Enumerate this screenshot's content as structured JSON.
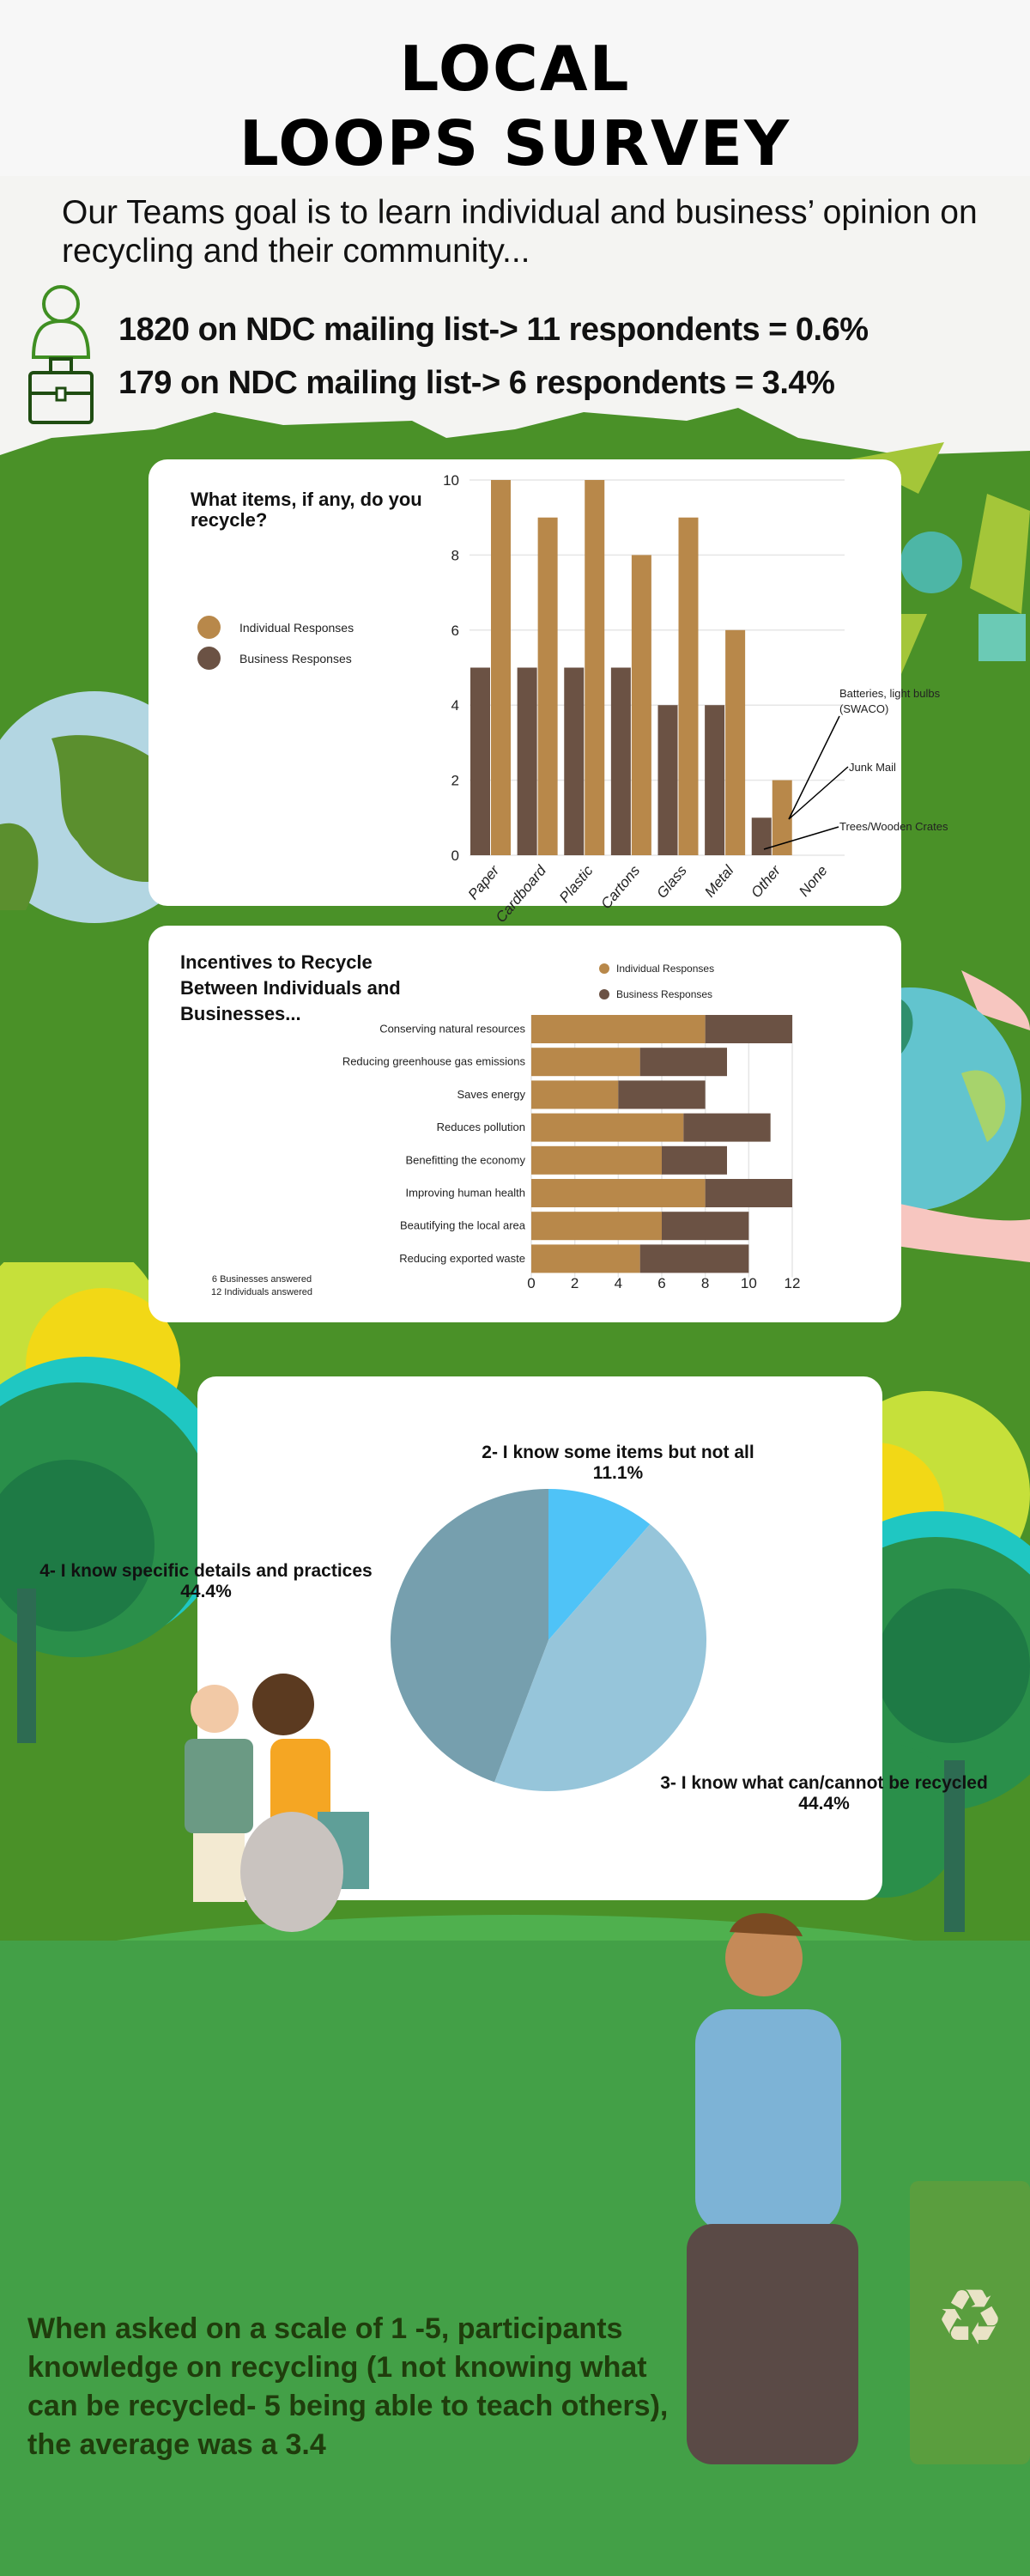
{
  "header": {
    "title_line1": "LOCAL",
    "title_line2": "LOOPS SURVEY"
  },
  "intro": {
    "goal": "Our Teams goal is to learn individual and business’ opinion on recycling and their community..."
  },
  "stats": [
    {
      "icon": "person-icon",
      "text": "1820 on NDC mailing list-> 11 respondents = 0.6%"
    },
    {
      "icon": "briefcase-icon",
      "text": "179 on NDC mailing list-> 6 respondents = 3.4%"
    }
  ],
  "colors": {
    "individual": "#b8884a",
    "business": "#6b5244",
    "pie": [
      "#4fc3f7",
      "#96c5da",
      "#769fae"
    ],
    "green": "#4a9128",
    "text_dark": "#1f3d0c"
  },
  "chart_data": [
    {
      "type": "bar",
      "title": "What items, if any, do you recycle?",
      "categories": [
        "Paper",
        "Cardboard",
        "Plastic",
        "Cartons",
        "Glass",
        "Metal",
        "Other",
        "None"
      ],
      "series": [
        {
          "name": "Business Responses",
          "values": [
            5,
            5,
            5,
            5,
            4,
            4,
            1,
            0
          ]
        },
        {
          "name": "Individual Responses",
          "values": [
            10,
            9,
            10,
            8,
            9,
            6,
            2,
            0
          ]
        }
      ],
      "legend_order": [
        "Individual Responses",
        "Business Responses"
      ],
      "yticks": [
        0,
        2,
        4,
        6,
        8,
        10
      ],
      "ylim": [
        0,
        10
      ],
      "grid": true,
      "legend": "left",
      "annotations": [
        "Batteries, light bulbs (SWACO)",
        "Junk Mail",
        "Trees/Wooden Crates"
      ]
    },
    {
      "type": "bar",
      "orientation": "horizontal",
      "stacked": true,
      "title": "Incentives to Recycle Between Individuals and Businesses...",
      "categories": [
        "Conserving natural resources",
        "Reducing greenhouse gas emissions",
        "Saves energy",
        "Reduces pollution",
        "Benefitting the economy",
        "Improving human health",
        "Beautifying the local area",
        "Reducing exported waste"
      ],
      "series": [
        {
          "name": "Individual Responses",
          "values": [
            8,
            5,
            4,
            7,
            6,
            8,
            6,
            5
          ]
        },
        {
          "name": "Business Responses",
          "values": [
            4,
            4,
            4,
            4,
            3,
            4,
            4,
            5
          ]
        }
      ],
      "xticks": [
        0,
        2,
        4,
        6,
        8,
        10,
        12
      ],
      "xlim": [
        0,
        12
      ],
      "legend": "top",
      "notes": [
        "6 Businesses answered",
        "12 Individuals answered"
      ]
    },
    {
      "type": "pie",
      "slices": [
        {
          "label": "2- I know some items but not all",
          "value": 11.1,
          "pct": "11.1%"
        },
        {
          "label": "3- I know what can/cannot be recycled",
          "value": 44.4,
          "pct": "44.4%"
        },
        {
          "label": "4- I know specific details and practices",
          "value": 44.4,
          "pct": "44.4%"
        }
      ]
    }
  ],
  "footer": {
    "text": "When asked on a scale of 1 -5, participants knowledge on recycling (1 not knowing what can be recycled- 5 being able to teach others), the average was a 3.4"
  }
}
